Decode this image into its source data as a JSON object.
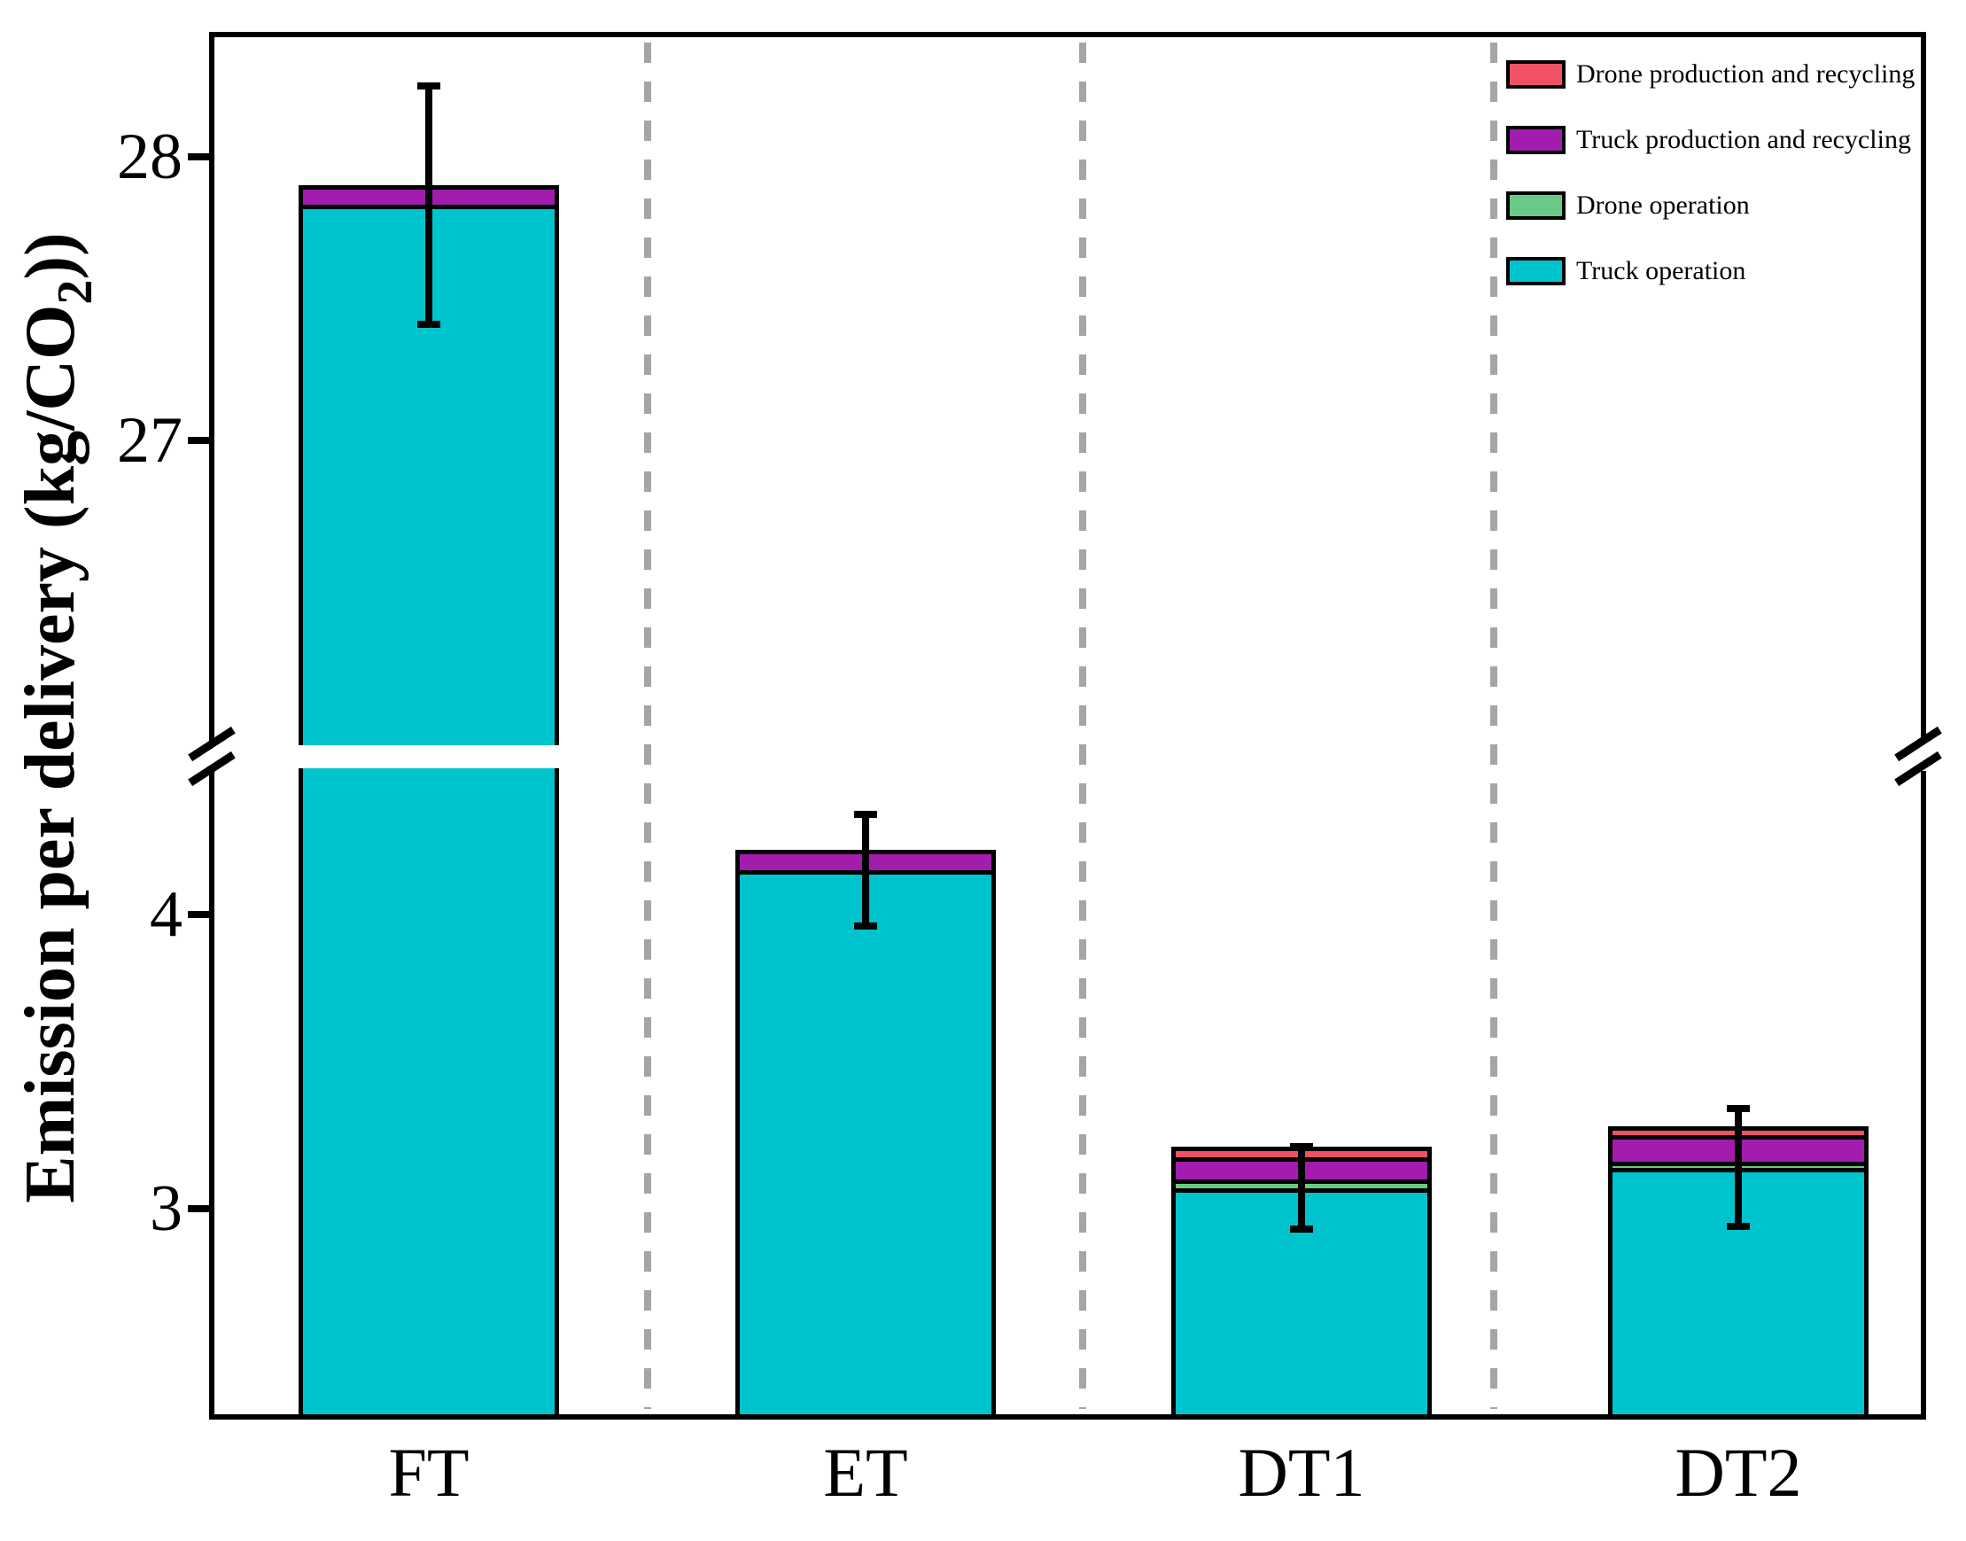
{
  "chart_data": {
    "type": "bar",
    "stacked": true,
    "title": "",
    "ylabel": "Emission per delivery (kg/CO2))",
    "ylabel_parts": {
      "pre": "Emission per delivery (kg/CO",
      "sub": "2",
      "post": "))"
    },
    "categories": [
      "FT",
      "ET",
      "DT1",
      "DT2"
    ],
    "series": [
      {
        "name": "Truck operation",
        "color": "#00C4CD",
        "values": [
          27.83,
          4.15,
          3.07,
          3.14
        ]
      },
      {
        "name": "Drone operation",
        "color": "#69CA87",
        "values": [
          0,
          0,
          0.03,
          0.02
        ]
      },
      {
        "name": "Truck production and recycling",
        "color": "#A21CAD",
        "values": [
          0.07,
          0.07,
          0.075,
          0.09
        ]
      },
      {
        "name": "Drone production and recycling",
        "color": "#EF5266",
        "values": [
          0,
          0,
          0.035,
          0.03
        ]
      }
    ],
    "totals": [
      27.9,
      4.22,
      3.21,
      3.28
    ],
    "error_bars": {
      "centers": [
        27.83,
        4.15,
        3.07,
        3.14
      ],
      "plus_minus": [
        0.42,
        0.19,
        0.14,
        0.2
      ]
    },
    "y_axis": {
      "ticks_upper": [
        {
          "label": "28",
          "value": 28
        },
        {
          "label": "27",
          "value": 27
        }
      ],
      "ticks_lower": [
        {
          "label": "4",
          "value": 4
        },
        {
          "label": "3",
          "value": 3
        }
      ],
      "lower_start": 2.3,
      "upper_end": 28.42,
      "break_lower": 4.56,
      "break_upper": 25.88,
      "break_marker": "double-slash"
    },
    "legend": {
      "position": "top-right",
      "items": [
        {
          "label": "Drone production and recycling",
          "color": "#EF5266"
        },
        {
          "label": "Truck production and recycling",
          "color": "#A21CAD"
        },
        {
          "label": "Drone operation",
          "color": "#69CA87"
        },
        {
          "label": "Truck operation",
          "color": "#00C4CD"
        }
      ]
    },
    "separators": {
      "style": "dashed",
      "color": "#A5A5A5"
    },
    "colors": {
      "axis": "#000000",
      "background": "#FFFFFF",
      "error_bar": "#000000"
    }
  }
}
